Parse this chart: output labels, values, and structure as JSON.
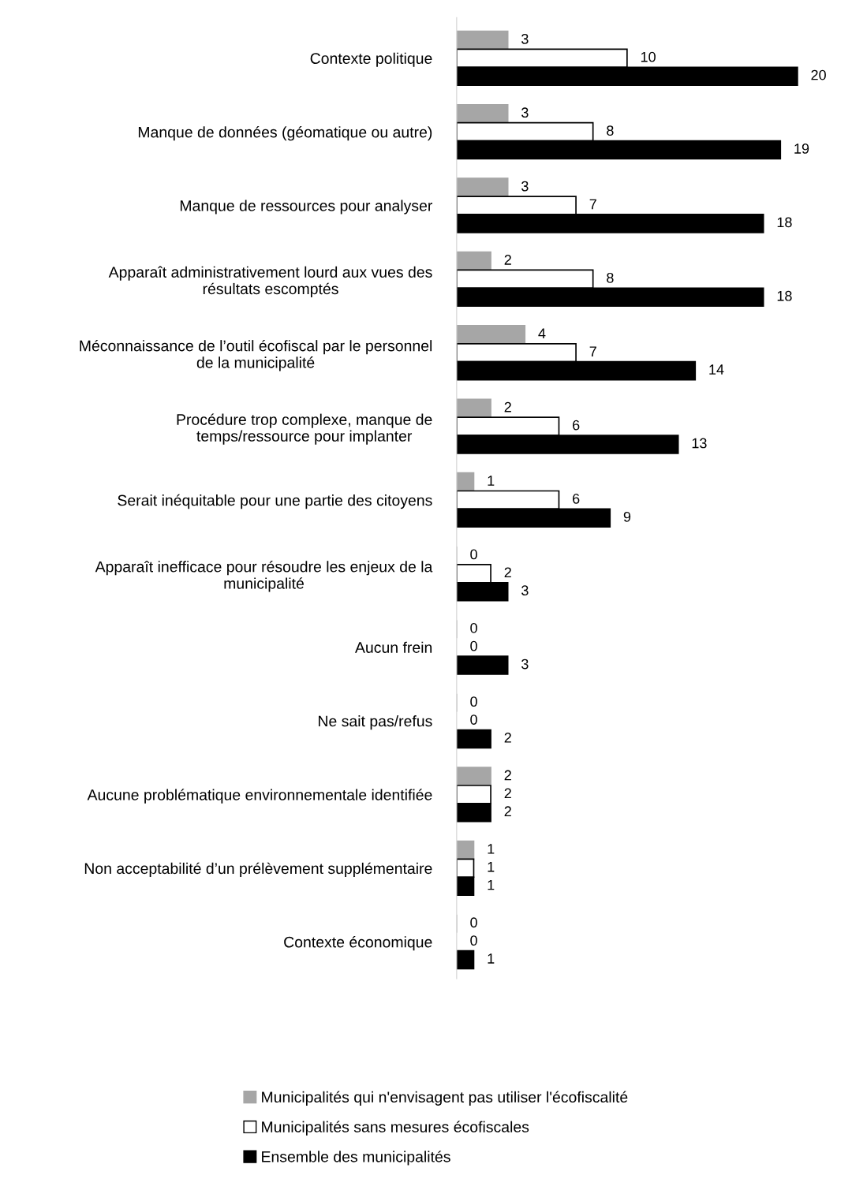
{
  "chart_data": {
    "type": "bar",
    "orientation": "horizontal",
    "categories": [
      "Contexte politique",
      "Manque de données (géomatique ou autre)",
      "Manque de ressources pour analyser",
      "Apparaît administrativement lourd aux vues des\nrésultats escomptés",
      "Méconnaissance de l’outil écofiscal par le personnel\nde la municipalité",
      "Procédure trop complexe, manque de\ntemps/ressource pour implanter",
      "Serait inéquitable pour une partie des citoyens",
      "Apparaît inefficace pour résoudre les enjeux de la\nmunicipalité",
      "Aucun frein",
      "Ne sait pas/refus",
      "Aucune problématique environnementale identifiée",
      "Non acceptabilité d’un prélèvement supplémentaire",
      "Contexte économique"
    ],
    "series": [
      {
        "name": "Municipalités qui n'envisagent pas utiliser l'écofiscalité",
        "color": "#a6a6a6",
        "values": [
          3,
          3,
          3,
          2,
          4,
          2,
          1,
          0,
          0,
          0,
          2,
          1,
          0
        ]
      },
      {
        "name": "Municipalités sans mesures écofiscales",
        "color": "#ffffff",
        "values": [
          10,
          8,
          7,
          8,
          7,
          6,
          6,
          2,
          0,
          0,
          2,
          1,
          0
        ]
      },
      {
        "name": "Ensemble des municipalités",
        "color": "#000000",
        "values": [
          20,
          19,
          18,
          18,
          14,
          13,
          9,
          3,
          3,
          2,
          2,
          1,
          1
        ]
      }
    ],
    "data_labels": true,
    "legend": "bottom",
    "grid": false
  }
}
